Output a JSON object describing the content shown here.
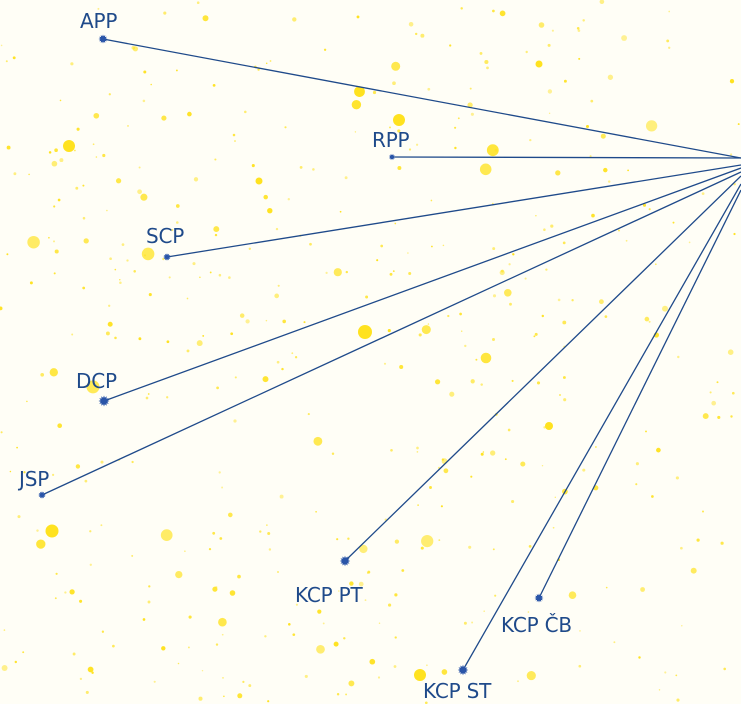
{
  "colors": {
    "background": "#fffef6",
    "star": "#ffe21f",
    "node": "#2a55a8",
    "line": "#1f4a8a",
    "label": "#1f4a8a"
  },
  "nodes": [
    {
      "id": "app",
      "label": "APP",
      "icon": "star-burst-icon"
    },
    {
      "id": "rpp",
      "label": "RPP",
      "icon": "star-burst-icon"
    },
    {
      "id": "scp",
      "label": "SCP",
      "icon": "star-burst-icon"
    },
    {
      "id": "dcp",
      "label": "DCP",
      "icon": "star-burst-icon"
    },
    {
      "id": "jsp",
      "label": "JSP",
      "icon": "star-burst-icon"
    },
    {
      "id": "kcppt",
      "label": "KCP PT",
      "icon": "star-burst-icon"
    },
    {
      "id": "kcpcb",
      "label": "KCP ČB",
      "icon": "star-burst-icon"
    },
    {
      "id": "kcpst",
      "label": "KCP ST",
      "icon": "star-burst-icon"
    }
  ]
}
